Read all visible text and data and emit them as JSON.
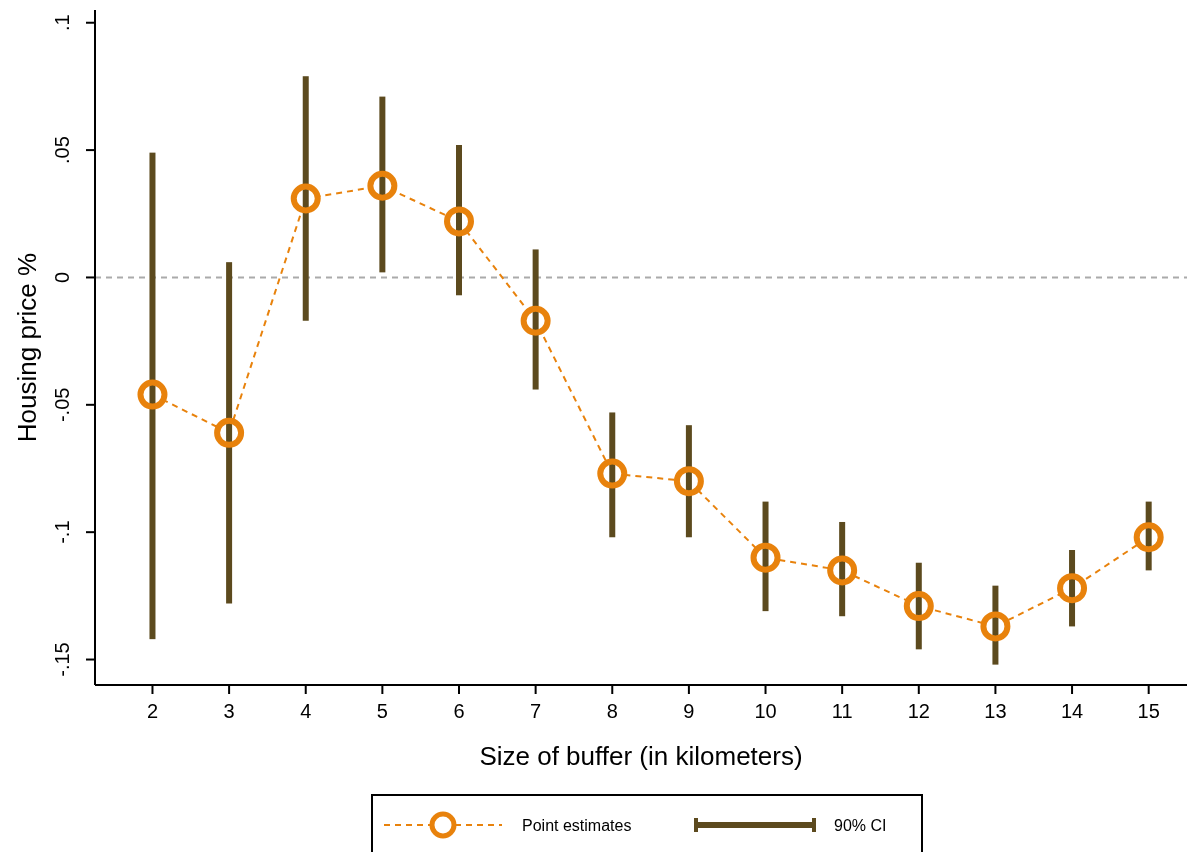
{
  "chart_data": {
    "type": "line",
    "xlabel": "Size of buffer (in kilometers)",
    "ylabel": "Housing price %",
    "x": [
      2,
      3,
      4,
      5,
      6,
      7,
      8,
      9,
      10,
      11,
      12,
      13,
      14,
      15
    ],
    "series": [
      {
        "name": "Point estimates",
        "marker": "circle",
        "line_style": "dashed",
        "color": "#e8820c",
        "values": [
          -0.046,
          -0.061,
          0.031,
          0.036,
          0.022,
          -0.017,
          -0.077,
          -0.08,
          -0.11,
          -0.115,
          -0.129,
          -0.137,
          -0.122,
          -0.102
        ]
      },
      {
        "name": "90% CI",
        "type": "bar",
        "color": "#5c4a1e",
        "base": [
          -0.142,
          -0.128,
          -0.017,
          0.002,
          -0.007,
          -0.044,
          -0.102,
          -0.102,
          -0.131,
          -0.133,
          -0.146,
          -0.152,
          -0.137,
          -0.115
        ],
        "values": [
          0.191,
          0.134,
          0.096,
          0.069,
          0.059,
          0.055,
          0.049,
          0.044,
          0.043,
          0.037,
          0.034,
          0.031,
          0.03,
          0.027
        ]
      }
    ],
    "xlim": [
      1.25,
      15.5
    ],
    "xticks": [
      2,
      3,
      4,
      5,
      6,
      7,
      8,
      9,
      10,
      11,
      12,
      13,
      14,
      15
    ],
    "ylim": [
      -0.16,
      0.105
    ],
    "yticks": [
      {
        "value": -0.15,
        "label": "-.15"
      },
      {
        "value": -0.1,
        "label": "-.1"
      },
      {
        "value": -0.05,
        "label": "-.05"
      },
      0,
      {
        "value": 0.05,
        "label": ".05"
      },
      {
        "value": 0.1,
        "label": ".1"
      }
    ],
    "ref_lines": [
      {
        "axis": "y",
        "value": 0,
        "color": "#aaaaaa",
        "line_style": "dashed"
      }
    ],
    "grid": false,
    "legend": "bottom"
  }
}
